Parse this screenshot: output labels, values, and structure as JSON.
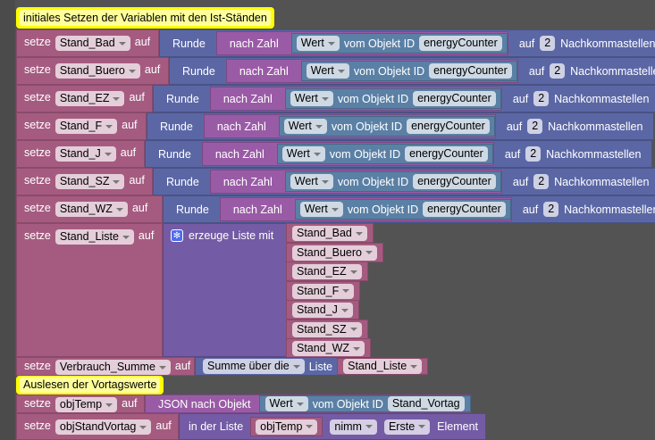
{
  "comments": {
    "c1": "initiales Setzen der Variablen mit den Ist-Ständen",
    "c2": "Auslesen der Vortagswerte"
  },
  "labels": {
    "setze": "setze",
    "auf": "auf",
    "runde": "Runde",
    "nach_zahl": "nach Zahl",
    "wert": "Wert",
    "vom_objekt": "vom Objekt ID",
    "auf2": "auf",
    "nachkomma": "Nachkommastellen",
    "erzeuge": "erzeuge Liste mit",
    "summe": "Summe über die",
    "liste": "Liste",
    "json": "JSON nach Objekt",
    "in_liste": "in der Liste",
    "nimm": "nimm",
    "erste": "Erste",
    "element": "Element"
  },
  "rows": [
    {
      "var": "Stand_Bad",
      "id": "energyCounter",
      "digits": "2"
    },
    {
      "var": "Stand_Buero",
      "id": "energyCounter",
      "digits": "2"
    },
    {
      "var": "Stand_EZ",
      "id": "energyCounter",
      "digits": "2"
    },
    {
      "var": "Stand_F",
      "id": "energyCounter",
      "digits": "2"
    },
    {
      "var": "Stand_J",
      "id": "energyCounter",
      "digits": "2"
    },
    {
      "var": "Stand_SZ",
      "id": "energyCounter",
      "digits": "2"
    },
    {
      "var": "Stand_WZ",
      "id": "energyCounter",
      "digits": "2"
    }
  ],
  "liste": {
    "var": "Stand_Liste",
    "items": [
      "Stand_Bad",
      "Stand_Buero",
      "Stand_EZ",
      "Stand_F",
      "Stand_J",
      "Stand_SZ",
      "Stand_WZ"
    ]
  },
  "summe": {
    "var": "Verbrauch_Summe",
    "list": "Stand_Liste"
  },
  "objtemp": {
    "var": "objTemp",
    "id": "Stand_Vortag"
  },
  "objvortag": {
    "var": "objStandVortag",
    "list": "objTemp"
  }
}
